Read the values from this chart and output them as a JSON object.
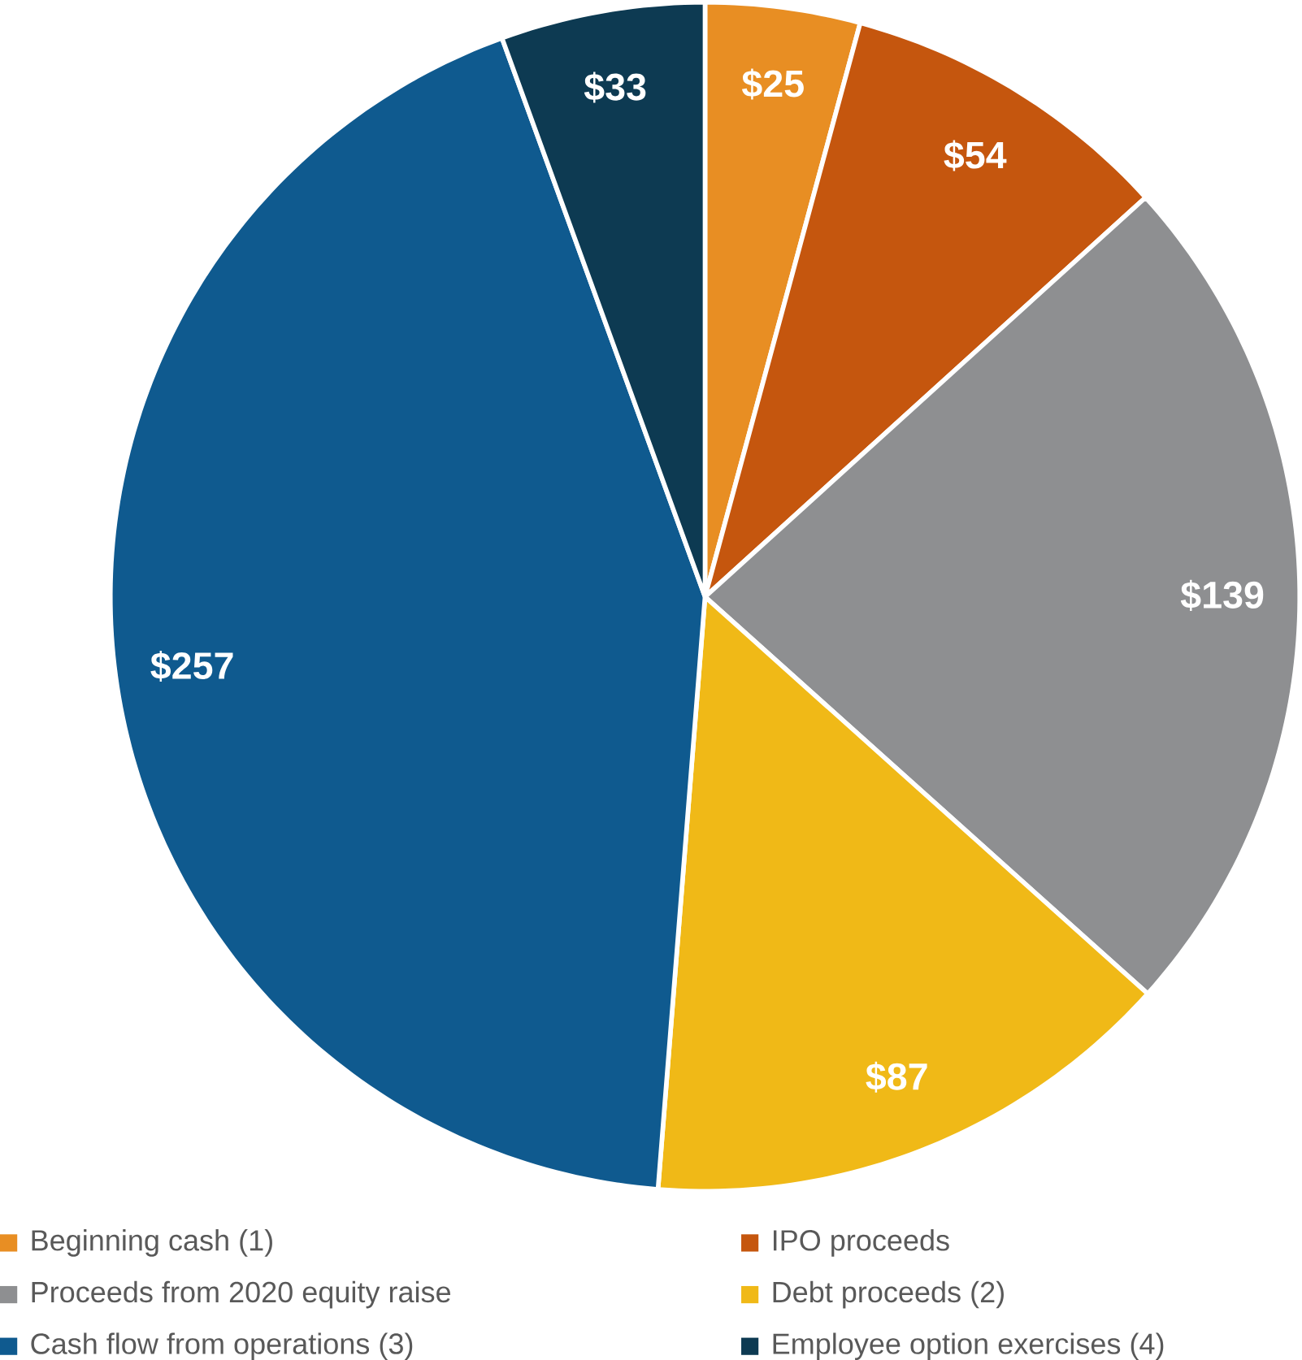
{
  "chart_data": {
    "type": "pie",
    "categories": [
      "Beginning cash (1)",
      "IPO proceeds",
      "Proceeds from 2020 equity raise",
      "Debt proceeds (2)",
      "Cash flow from operations (3)",
      "Employee option exercises (4)"
    ],
    "values": [
      25,
      54,
      139,
      87,
      257,
      33
    ],
    "colors": [
      "#e88e23",
      "#c5560e",
      "#8e8f91",
      "#f0b917",
      "#0f5a8f",
      "#0d3a52"
    ],
    "value_labels": [
      "$25",
      "$54",
      "$139",
      "$87",
      "$257",
      "$33"
    ],
    "legend": "bottom"
  }
}
